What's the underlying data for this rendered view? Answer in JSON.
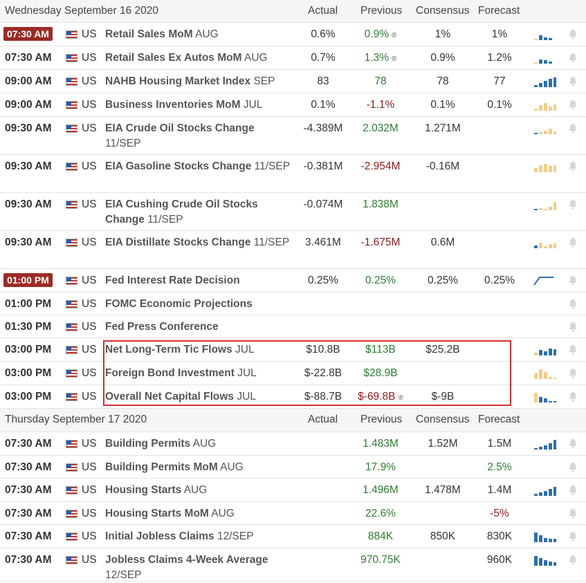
{
  "sections": [
    {
      "header": {
        "day": "Wednesday September 16 2020",
        "actual": "Actual",
        "previous": "Previous",
        "consensus": "Consensus",
        "forecast": "Forecast"
      },
      "rows": [
        {
          "time": "07:30 AM",
          "badge": true,
          "country": "US",
          "event": "Retail Sales MoM",
          "period": "AUG",
          "actual": "0.6%",
          "previous": "0.9%",
          "prev_color": "green",
          "prev_revised": true,
          "consensus": "1%",
          "forecast": "1%",
          "spark": [
            2,
            7,
            4,
            3
          ],
          "spark_color": "#2f6fad",
          "accent": "#f3ce8a"
        },
        {
          "time": "07:30 AM",
          "badge": false,
          "country": "US",
          "event": "Retail Sales Ex Autos MoM",
          "period": "AUG",
          "actual": "0.7%",
          "previous": "1.3%",
          "prev_color": "green",
          "prev_revised": true,
          "consensus": "0.9%",
          "forecast": "1.2%",
          "spark": [
            2,
            6,
            5,
            3
          ],
          "spark_color": "#2f6fad",
          "accent": "#f3ce8a"
        },
        {
          "time": "09:00 AM",
          "badge": false,
          "country": "US",
          "event": "NAHB Housing Market Index",
          "period": "SEP",
          "actual": "83",
          "previous": "78",
          "prev_color": "green",
          "prev_revised": false,
          "consensus": "78",
          "forecast": "77",
          "spark": [
            3,
            6,
            9,
            12,
            14
          ],
          "spark_color": "#2f6fad",
          "accent": null
        },
        {
          "time": "09:00 AM",
          "badge": false,
          "country": "US",
          "event": "Business Inventories MoM",
          "period": "JUL",
          "actual": "0.1%",
          "previous": "-1.1%",
          "prev_color": "red",
          "prev_revised": false,
          "consensus": "0.1%",
          "forecast": "0.1%",
          "spark": [
            3,
            8,
            11,
            6,
            9
          ],
          "spark_color": "#f3ce8a",
          "accent": null
        },
        {
          "time": "09:30 AM",
          "badge": false,
          "country": "US",
          "event": "EIA Crude Oil Stocks Change",
          "period": "11/SEP",
          "actual": "-4.389M",
          "previous": "2.032M",
          "prev_color": "green",
          "prev_revised": false,
          "consensus": "1.271M",
          "forecast": "",
          "spark": [
            2,
            3,
            5,
            8,
            4
          ],
          "spark_color": "#f3ce8a",
          "accent": "#2f6fad"
        },
        {
          "time": "09:30 AM",
          "badge": false,
          "country": "US",
          "event": "EIA Gasoline Stocks Change",
          "period": "11/SEP",
          "actual": "-0.381M",
          "previous": "-2.954M",
          "prev_color": "red",
          "prev_revised": false,
          "consensus": "-0.16M",
          "forecast": "",
          "spark": [
            6,
            10,
            12,
            9,
            10
          ],
          "spark_color": "#f3ce8a",
          "accent": null
        },
        {
          "time": "09:30 AM",
          "badge": false,
          "country": "US",
          "event": "EIA Cushing Crude Oil Stocks Change",
          "period": "11/SEP",
          "actual": "-0.074M",
          "previous": "1.838M",
          "prev_color": "green",
          "prev_revised": false,
          "consensus": "",
          "forecast": "",
          "spark": [
            2,
            3,
            2,
            5,
            12
          ],
          "spark_color": "#f3ce8a",
          "accent": "#2f6fad"
        },
        {
          "time": "09:30 AM",
          "badge": false,
          "country": "US",
          "event": "EIA Distillate Stocks Change",
          "period": "11/SEP",
          "actual": "3.461M",
          "previous": "-1.675M",
          "prev_color": "red",
          "prev_revised": false,
          "consensus": "0.6M",
          "forecast": "",
          "spark": [
            4,
            8,
            3,
            6,
            7
          ],
          "spark_color": "#f3ce8a",
          "accent": "#2f6fad"
        },
        {
          "time": "01:00 PM",
          "badge": true,
          "country": "US",
          "event": "Fed Interest Rate Decision",
          "period": "",
          "actual": "0.25%",
          "previous": "0.25%",
          "prev_color": "green",
          "prev_revised": false,
          "consensus": "0.25%",
          "forecast": "0.25%",
          "spark": "line",
          "spark_color": "#2f6fad",
          "accent": null
        },
        {
          "time": "01:00 PM",
          "badge": false,
          "country": "US",
          "event": "FOMC Economic Projections",
          "period": "",
          "actual": "",
          "previous": "",
          "prev_color": "",
          "prev_revised": false,
          "consensus": "",
          "forecast": "",
          "spark": null,
          "spark_color": null,
          "accent": null
        },
        {
          "time": "01:30 PM",
          "badge": false,
          "country": "US",
          "event": "Fed Press Conference",
          "period": "",
          "actual": "",
          "previous": "",
          "prev_color": "",
          "prev_revised": false,
          "consensus": "",
          "forecast": "",
          "spark": null,
          "spark_color": null,
          "accent": null
        },
        {
          "time": "03:00 PM",
          "badge": false,
          "country": "US",
          "event": "Net Long-Term Tic Flows",
          "period": "JUL",
          "actual": "$10.8B",
          "previous": "$113B",
          "prev_color": "green",
          "prev_revised": false,
          "consensus": "$25.2B",
          "forecast": "",
          "spark": [
            4,
            8,
            6,
            10,
            9
          ],
          "spark_color": "#2f6fad",
          "accent": "#f3ce8a"
        },
        {
          "time": "03:00 PM",
          "badge": false,
          "country": "US",
          "event": "Foreign Bond Investment",
          "period": "JUL",
          "actual": "$-22.8B",
          "previous": "$28.9B",
          "prev_color": "green",
          "prev_revised": false,
          "consensus": "",
          "forecast": "",
          "spark": [
            9,
            14,
            10,
            3,
            2
          ],
          "spark_color": "#f3ce8a",
          "accent": null
        },
        {
          "time": "03:00 PM",
          "badge": false,
          "country": "US",
          "event": "Overall Net Capital Flows",
          "period": "JUL",
          "actual": "$-88.7B",
          "previous": "$-69.8B",
          "prev_color": "red",
          "prev_revised": true,
          "consensus": "$-9B",
          "forecast": "",
          "spark": [
            14,
            8,
            6,
            2,
            2
          ],
          "spark_color": "#2f6fad",
          "accent": "#f3ce8a"
        }
      ]
    },
    {
      "header": {
        "day": "Thursday September 17 2020",
        "actual": "Actual",
        "previous": "Previous",
        "consensus": "Consensus",
        "forecast": "Forecast"
      },
      "rows": [
        {
          "time": "07:30 AM",
          "badge": false,
          "country": "US",
          "event": "Building Permits",
          "period": "AUG",
          "actual": "",
          "previous": "1.483M",
          "prev_color": "green",
          "prev_revised": false,
          "consensus": "1.52M",
          "forecast": "1.5M",
          "spark": [
            2,
            4,
            6,
            9,
            14
          ],
          "spark_color": "#2f6fad",
          "accent": null
        },
        {
          "time": "07:30 AM",
          "badge": false,
          "country": "US",
          "event": "Building Permits MoM",
          "period": "AUG",
          "actual": "",
          "previous": "17.9%",
          "prev_color": "green",
          "prev_revised": false,
          "consensus": "",
          "forecast": "2.5%",
          "forecast_color": "green",
          "spark": null,
          "spark_color": null,
          "accent": null
        },
        {
          "time": "07:30 AM",
          "badge": false,
          "country": "US",
          "event": "Housing Starts",
          "period": "AUG",
          "actual": "",
          "previous": "1.496M",
          "prev_color": "green",
          "prev_revised": false,
          "consensus": "1.478M",
          "forecast": "1.4M",
          "spark": [
            3,
            5,
            7,
            10,
            13
          ],
          "spark_color": "#2f6fad",
          "accent": null
        },
        {
          "time": "07:30 AM",
          "badge": false,
          "country": "US",
          "event": "Housing Starts MoM",
          "period": "AUG",
          "actual": "",
          "previous": "22.6%",
          "prev_color": "green",
          "prev_revised": false,
          "consensus": "",
          "forecast": "-5%",
          "forecast_color": "red",
          "spark": null,
          "spark_color": null,
          "accent": null
        },
        {
          "time": "07:30 AM",
          "badge": false,
          "country": "US",
          "event": "Initial Jobless Claims",
          "period": "12/SEP",
          "actual": "",
          "previous": "884K",
          "prev_color": "green",
          "prev_revised": false,
          "consensus": "850K",
          "forecast": "830K",
          "spark": [
            14,
            10,
            6,
            5,
            5
          ],
          "spark_color": "#2f6fad",
          "accent": null
        },
        {
          "time": "07:30 AM",
          "badge": false,
          "country": "US",
          "event": "Jobless Claims 4-Week Average",
          "period": "12/SEP",
          "actual": "",
          "previous": "970.75K",
          "prev_color": "green",
          "prev_revised": false,
          "consensus": "",
          "forecast": "960K",
          "spark": [
            14,
            11,
            8,
            6,
            5
          ],
          "spark_color": "#2f6fad",
          "accent": null
        }
      ]
    }
  ]
}
